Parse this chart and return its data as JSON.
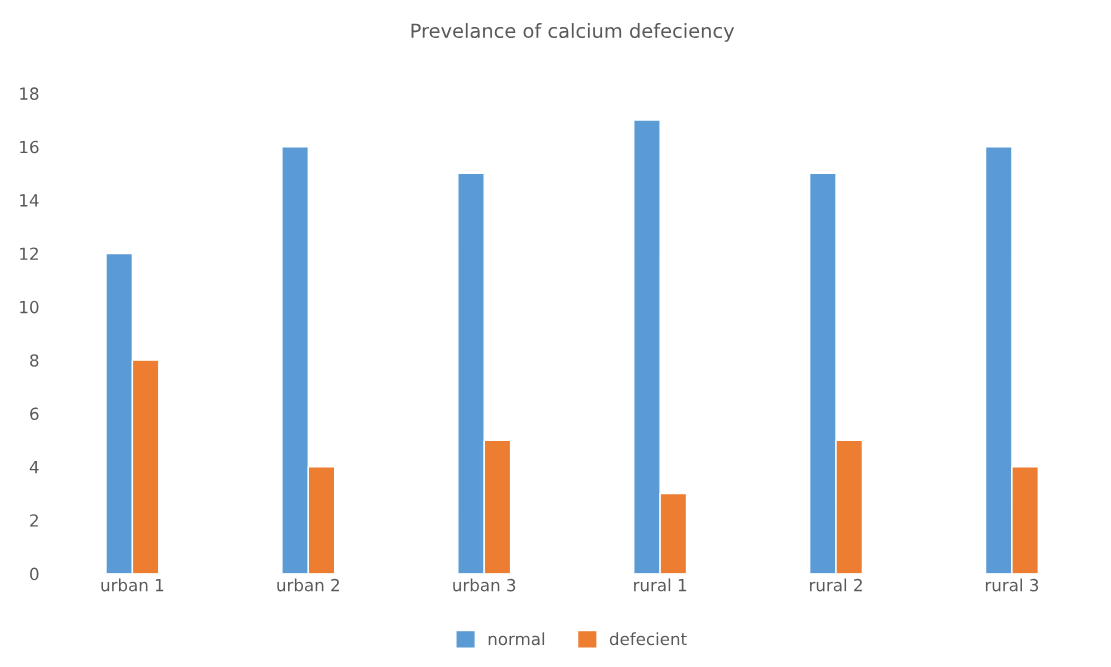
{
  "chart_data": {
    "type": "bar",
    "title": "Prevelance of calcium defeciency",
    "categories": [
      "urban 1",
      "urban 2",
      "urban 3",
      "rural 1",
      "rural 2",
      "rural 3"
    ],
    "series": [
      {
        "name": "normal",
        "color": "#5b9bd5",
        "values": [
          12,
          16,
          15,
          17,
          15,
          16
        ]
      },
      {
        "name": "defecient",
        "color": "#ed7d31",
        "values": [
          8,
          4,
          5,
          3,
          5,
          4
        ]
      }
    ],
    "ylim": [
      0,
      18
    ],
    "yticks": [
      0,
      2,
      4,
      6,
      8,
      10,
      12,
      14,
      16,
      18
    ],
    "grid": false,
    "legend": "bottom"
  }
}
